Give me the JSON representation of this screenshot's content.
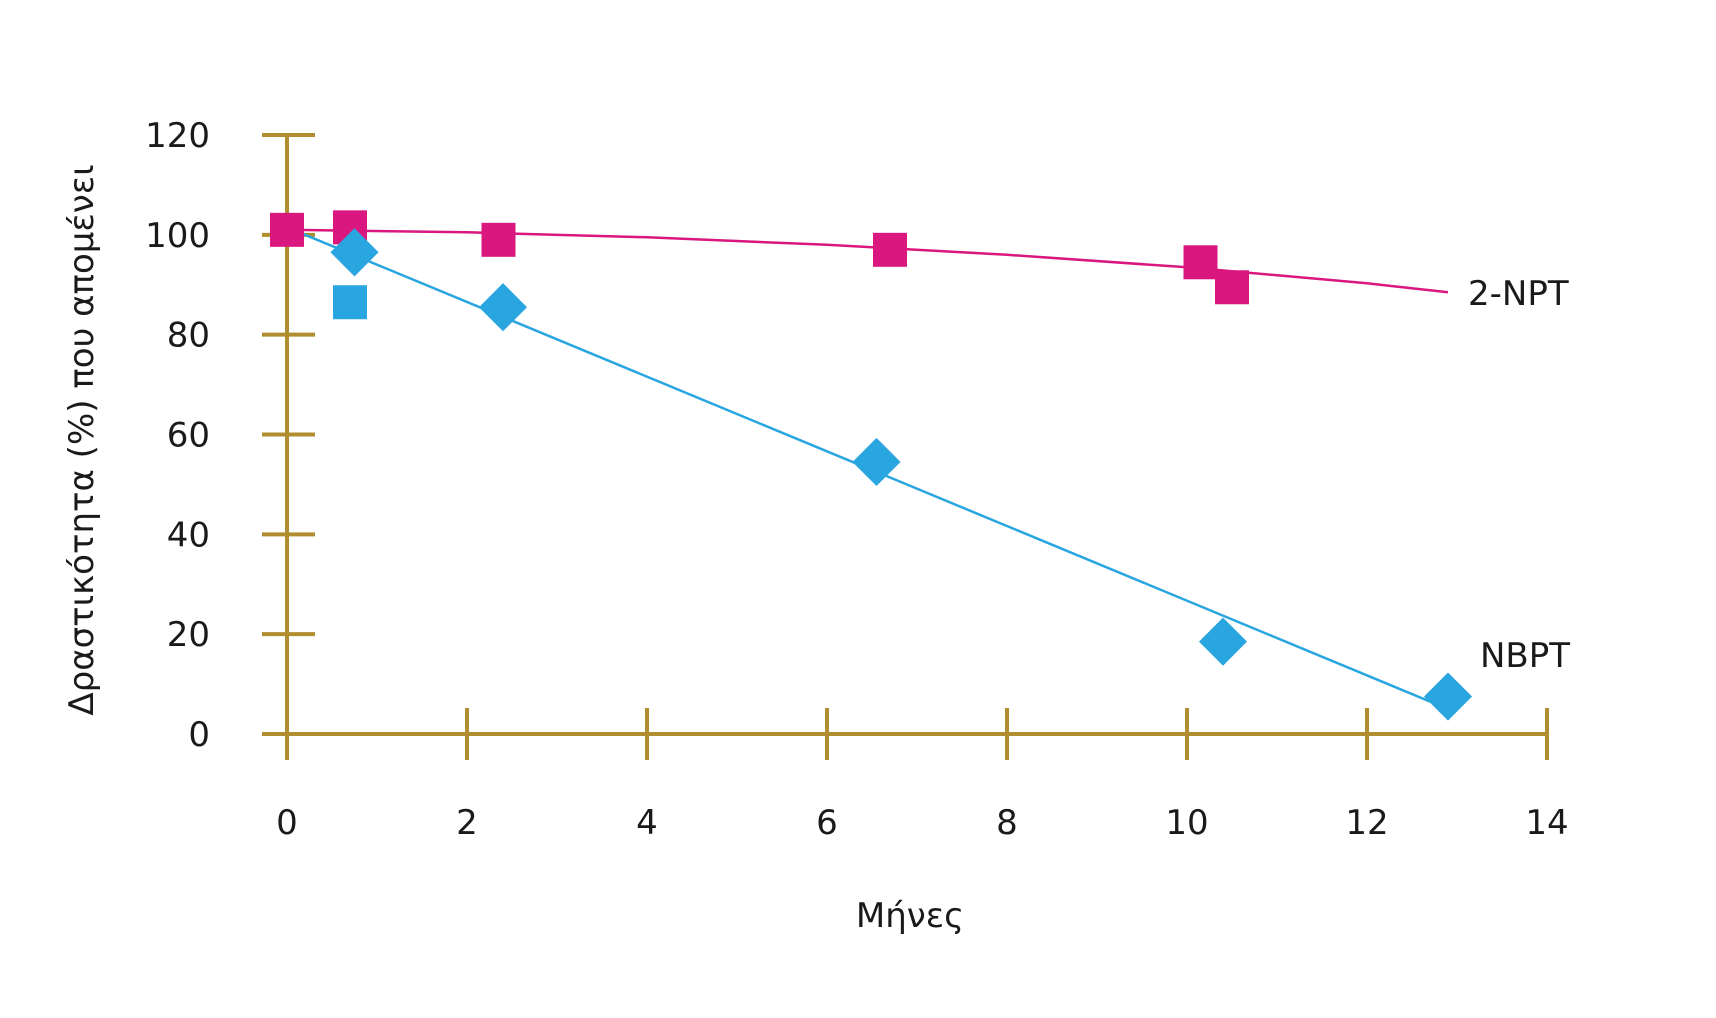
{
  "colors": {
    "axis": "#b08d2e",
    "series_2npt": "#d9177f",
    "series_nbpt": "#29a6e0"
  },
  "chart_data": {
    "type": "scatter",
    "title": "",
    "xlabel": "Μήνες",
    "ylabel": "Δραστικότητα (%) που απομένει",
    "xlim": [
      0,
      14
    ],
    "ylim": [
      0,
      120
    ],
    "x_ticks": [
      0,
      2,
      4,
      6,
      8,
      10,
      12,
      14
    ],
    "y_ticks": [
      0,
      20,
      40,
      60,
      80,
      100,
      120
    ],
    "x_tick_labels": [
      "0",
      "2",
      "4",
      "6",
      "8",
      "10",
      "12",
      "14"
    ],
    "y_tick_labels": [
      "0",
      "20",
      "40",
      "60",
      "80",
      "100",
      "120"
    ],
    "grid": false,
    "series": [
      {
        "name": "2-NPT",
        "marker": "square",
        "color": "#d9177f",
        "points": [
          {
            "x": 0,
            "y": 101
          },
          {
            "x": 0.7,
            "y": 101.5
          },
          {
            "x": 2.35,
            "y": 99
          },
          {
            "x": 6.7,
            "y": 97
          },
          {
            "x": 10.15,
            "y": 94.5
          },
          {
            "x": 10.5,
            "y": 89.5
          }
        ],
        "trend": [
          {
            "x": 0,
            "y": 101
          },
          {
            "x": 2,
            "y": 100.5
          },
          {
            "x": 4,
            "y": 99.5
          },
          {
            "x": 6,
            "y": 98
          },
          {
            "x": 8,
            "y": 96
          },
          {
            "x": 10,
            "y": 93.5
          },
          {
            "x": 12,
            "y": 90.3
          },
          {
            "x": 12.9,
            "y": 88.5
          }
        ]
      },
      {
        "name": "NBPT",
        "marker": "diamond",
        "color": "#29a6e0",
        "points": [
          {
            "x": 0.75,
            "y": 96.5
          },
          {
            "x": 0.7,
            "y": 86.5,
            "marker": "square"
          },
          {
            "x": 2.4,
            "y": 85.5
          },
          {
            "x": 6.55,
            "y": 54.5
          },
          {
            "x": 10.4,
            "y": 18.5
          },
          {
            "x": 12.9,
            "y": 7.5
          }
        ],
        "trend": [
          {
            "x": 0,
            "y": 101.5
          },
          {
            "x": 12.9,
            "y": 5
          }
        ]
      }
    ]
  }
}
